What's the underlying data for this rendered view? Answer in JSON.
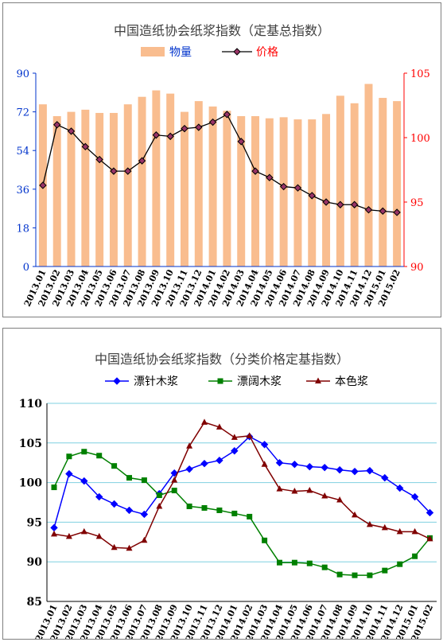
{
  "chart_data": [
    {
      "type": "bar+line",
      "title": "中国造纸协会纸浆指数（定基总指数）",
      "categories": [
        "2013.01",
        "2013.02",
        "2013.03",
        "2013.04",
        "2013.05",
        "2013.06",
        "2013.07",
        "2013.08",
        "2013.09",
        "2013.10",
        "2013.11",
        "2013.12",
        "2014.01",
        "2014.02",
        "2014.03",
        "2014.04",
        "2014.05",
        "2014.06",
        "2014.07",
        "2014.08",
        "2014.09",
        "2014.10",
        "2014.11",
        "2014.12",
        "2015.01",
        "2015.02"
      ],
      "series": [
        {
          "name": "物量",
          "kind": "bar",
          "axis": "left",
          "color": "#f9bd8f",
          "values": [
            75.5,
            70,
            72,
            73,
            71.5,
            71.5,
            75.5,
            79,
            82,
            80.5,
            72,
            77,
            74.5,
            72.5,
            70,
            70,
            69,
            69.5,
            68.5,
            68.5,
            71,
            79.5,
            76,
            85,
            78.5,
            77
          ]
        },
        {
          "name": "价格",
          "kind": "line",
          "axis": "right",
          "color": "#000000",
          "marker_color": "#993366",
          "values": [
            96.3,
            101.0,
            100.5,
            99.3,
            98.3,
            97.4,
            97.4,
            98.2,
            100.2,
            100.1,
            100.7,
            100.8,
            101.2,
            101.8,
            99.7,
            97.4,
            96.9,
            96.2,
            96.1,
            95.5,
            95.0,
            94.8,
            94.8,
            94.4,
            94.3,
            94.2
          ]
        }
      ],
      "y_left": {
        "min": 0,
        "max": 90,
        "ticks": [
          "0",
          "18",
          "36",
          "54",
          "72",
          "90"
        ],
        "color": "#0033cc"
      },
      "y_right": {
        "min": 90,
        "max": 105,
        "ticks": [
          "90",
          "95",
          "100",
          "105"
        ],
        "color": "#ff0000"
      },
      "legend_placement": "top-center",
      "grid": false
    },
    {
      "type": "line",
      "title": "中国造纸协会纸浆指数（分类价格定基指数）",
      "categories": [
        "2013.01",
        "2013.02",
        "2013.03",
        "2013.04",
        "2013.05",
        "2013.06",
        "2013.07",
        "2013.08",
        "2013.09",
        "2013.10",
        "2013.11",
        "2013.12",
        "2014.01",
        "2014.02",
        "2014.03",
        "2014.04",
        "2014.05",
        "2014.06",
        "2014.07",
        "2014.08",
        "2014.09",
        "2014.10",
        "2014.11",
        "2014.12",
        "2015.01",
        "2015.02"
      ],
      "series": [
        {
          "name": "漂针木浆",
          "marker": "diamond",
          "color": "#0000ff",
          "values": [
            94.3,
            101.1,
            100.2,
            98.2,
            97.3,
            96.5,
            96.0,
            98.6,
            101.2,
            101.7,
            102.4,
            102.8,
            104.0,
            105.8,
            104.8,
            102.5,
            102.3,
            102.0,
            101.9,
            101.6,
            101.4,
            101.5,
            100.6,
            99.3,
            98.2,
            96.2
          ]
        },
        {
          "name": "漂阔木浆",
          "marker": "square",
          "color": "#008000",
          "values": [
            99.4,
            103.3,
            103.9,
            103.4,
            102.1,
            100.6,
            100.3,
            98.4,
            99.0,
            97.0,
            96.8,
            96.5,
            96.1,
            95.7,
            92.7,
            89.9,
            89.9,
            89.8,
            89.3,
            88.4,
            88.3,
            88.3,
            88.9,
            89.7,
            90.7,
            93.0
          ]
        },
        {
          "name": "本色浆",
          "marker": "triangle",
          "color": "#800000",
          "values": [
            93.5,
            93.2,
            93.8,
            93.2,
            91.8,
            91.7,
            92.7,
            97.0,
            100.3,
            104.6,
            107.6,
            107.0,
            105.7,
            105.9,
            102.3,
            99.2,
            98.9,
            99.0,
            98.3,
            97.8,
            95.9,
            94.7,
            94.3,
            93.8,
            93.8,
            92.9
          ]
        }
      ],
      "y": {
        "min": 85,
        "max": 110,
        "ticks": [
          "85",
          "90",
          "95",
          "100",
          "105",
          "110"
        ]
      },
      "legend_placement": "top",
      "grid": true
    }
  ]
}
